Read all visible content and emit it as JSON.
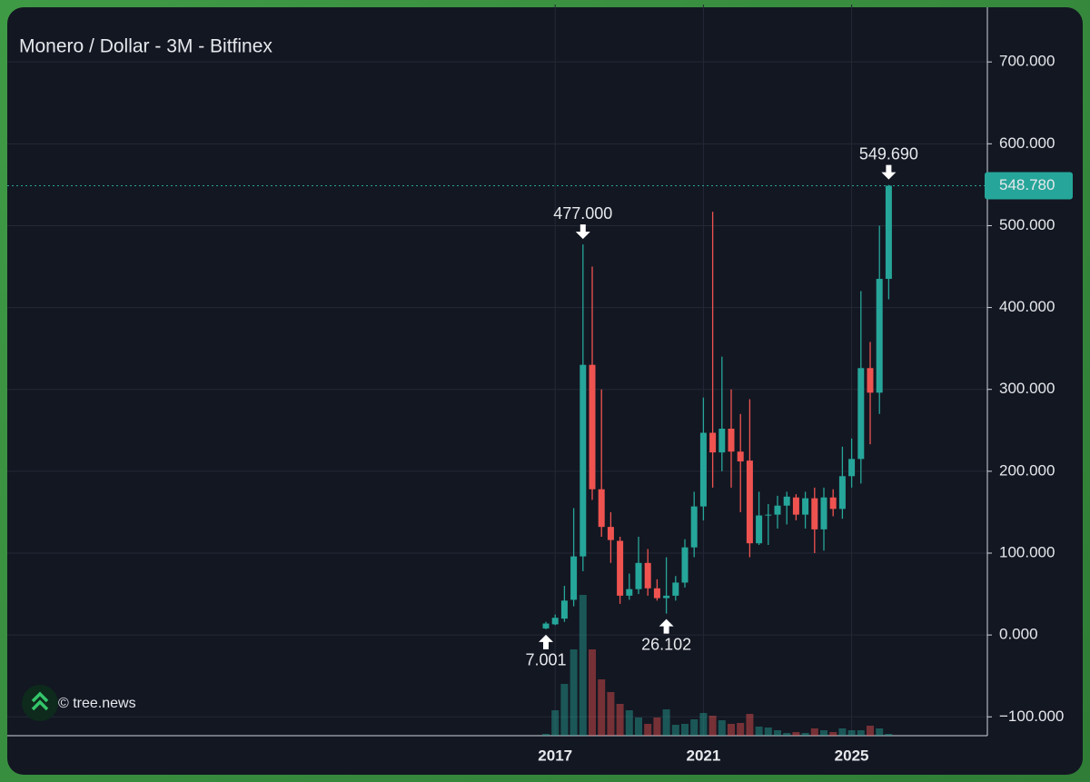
{
  "chart_data": {
    "type": "candlestick",
    "title": "Monero / Dollar - 3M - Bitfinex",
    "watermark": "© tree.news",
    "categories": [
      null,
      "2017",
      null,
      null,
      null,
      null,
      null,
      null,
      null,
      null,
      null,
      null,
      null,
      null,
      null,
      null,
      null,
      "2021",
      null,
      null,
      null,
      null,
      null,
      null,
      null,
      null,
      null,
      null,
      null,
      null,
      null,
      null,
      null,
      "2025",
      null,
      null,
      null,
      null
    ],
    "open": [
      8,
      13,
      20,
      43,
      96,
      330,
      178,
      132,
      115,
      48,
      56,
      88,
      57,
      45,
      48,
      64,
      107,
      157,
      247,
      223,
      252,
      224,
      213,
      112,
      146,
      147,
      158,
      168,
      147,
      167,
      129,
      168,
      154,
      194,
      215,
      326,
      296,
      435
    ],
    "high": [
      16,
      25,
      60,
      155,
      477,
      450,
      300,
      150,
      120,
      75,
      120,
      105,
      68,
      95,
      72,
      117,
      175,
      290,
      517,
      340,
      300,
      270,
      288,
      175,
      160,
      170,
      175,
      172,
      175,
      180,
      180,
      178,
      230,
      240,
      420,
      358,
      500,
      549.69
    ],
    "low": [
      7.001,
      12,
      16,
      35,
      78,
      165,
      120,
      88,
      38,
      43,
      50,
      48,
      42,
      26.102,
      42,
      58,
      95,
      140,
      180,
      200,
      180,
      150,
      95,
      110,
      110,
      130,
      135,
      140,
      130,
      100,
      103,
      145,
      142,
      180,
      185,
      233,
      270,
      410
    ],
    "close": [
      14,
      21,
      42,
      96,
      330,
      178,
      132,
      116,
      48,
      56,
      88,
      57,
      45,
      48,
      64,
      107,
      157,
      247,
      223,
      252,
      224,
      212,
      112,
      146,
      147,
      158,
      169,
      147,
      167,
      129,
      168,
      154,
      194,
      215,
      326,
      296,
      435,
      548.78
    ],
    "volume": [
      2,
      28,
      57,
      95,
      155,
      95,
      62,
      48,
      35,
      28,
      20,
      13,
      20,
      29,
      12,
      13,
      18,
      25,
      22,
      17,
      13,
      14,
      24,
      10,
      9,
      6,
      3,
      4,
      3,
      8,
      6,
      4,
      8,
      6,
      6,
      11,
      8,
      2
    ],
    "up_color": "#26a69a",
    "down_color": "#ef5350",
    "ylim": [
      -123,
      759
    ],
    "yticks": [
      {
        "value": -100,
        "label": "−100.000"
      },
      {
        "value": 0,
        "label": "0.000"
      },
      {
        "value": 100,
        "label": "100.000"
      },
      {
        "value": 200,
        "label": "200.000"
      },
      {
        "value": 300,
        "label": "300.000"
      },
      {
        "value": 400,
        "label": "400.000"
      },
      {
        "value": 500,
        "label": "500.000"
      },
      {
        "value": 600,
        "label": "600.000"
      },
      {
        "value": 700,
        "label": "700.000"
      }
    ],
    "grid": true,
    "last_price": {
      "value": 548.78,
      "label": "548.780"
    },
    "annotations": [
      {
        "value": 477,
        "label": "477.000"
      },
      {
        "value": 549.69,
        "label": "549.690"
      },
      {
        "value": 7.001,
        "label": "7.001"
      },
      {
        "value": 26.102,
        "label": "26.102"
      }
    ]
  }
}
